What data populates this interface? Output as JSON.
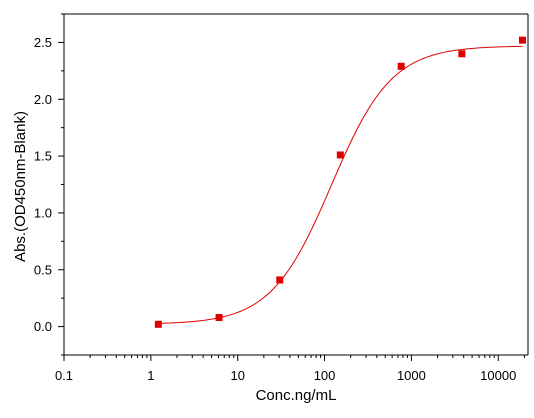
{
  "chart_data": {
    "type": "scatter",
    "x_scale": "log",
    "xlabel": "Conc.ng/mL",
    "ylabel": "Abs.(OD450nm-Blank)",
    "xlim": [
      0.1,
      22000
    ],
    "ylim": [
      -0.25,
      2.75
    ],
    "x_ticks": [
      0.1,
      1,
      10,
      100,
      1000,
      10000
    ],
    "x_tick_labels": [
      "0.1",
      "1",
      "10",
      "100",
      "1000",
      "10000"
    ],
    "y_ticks": [
      0.0,
      0.5,
      1.0,
      1.5,
      2.0,
      2.5
    ],
    "y_tick_labels": [
      "0.0",
      "0.5",
      "1.0",
      "1.5",
      "2.0",
      "2.5"
    ],
    "grid": false,
    "legend": "none",
    "marker_color": "#e00000",
    "line_color": "#e00000",
    "series": [
      {
        "x": [
          1.22,
          6.1,
          30.5,
          152,
          762,
          3810,
          19000
        ],
        "y": [
          0.02,
          0.08,
          0.41,
          1.51,
          2.29,
          2.4,
          2.52
        ]
      }
    ],
    "fit_curve": {
      "model": "4PL",
      "bottom": 0.02,
      "top": 2.47,
      "ec50": 120,
      "hill": 1.25
    }
  }
}
